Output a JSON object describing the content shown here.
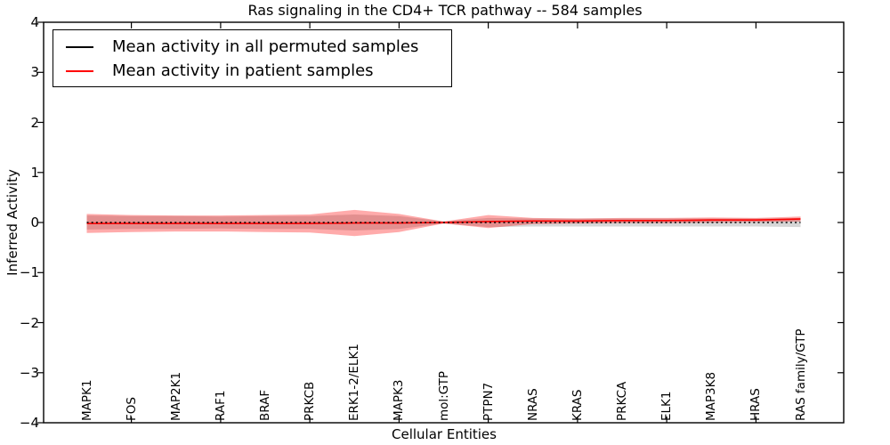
{
  "title": "Ras signaling in the CD4+ TCR pathway -- 584 samples",
  "chart_data": {
    "type": "line",
    "title": "Ras signaling in the CD4+ TCR pathway -- 584 samples",
    "xlabel": "Cellular Entities",
    "ylabel": "Inferred Activity",
    "ylim": [
      -4,
      4
    ],
    "yticks": [
      -4,
      -3,
      -2,
      -1,
      0,
      1,
      2,
      3,
      4
    ],
    "grid": false,
    "legend_position": "upper left",
    "categories": [
      "MAPK1",
      "FOS",
      "MAP2K1",
      "RAF1",
      "BRAF",
      "PRKCB",
      "ERK1-2/ELK1",
      "MAPK3",
      "mol:GTP",
      "PTPN7",
      "NRAS",
      "KRAS",
      "PRKCA",
      "ELK1",
      "MAP3K8",
      "HRAS",
      "RAS family/GTP"
    ],
    "series": [
      {
        "name": "Mean activity in all permuted samples",
        "color": "#000000",
        "line_style": "dashed",
        "band_color": "rgba(0,0,0,0.16)",
        "mean": [
          0,
          0,
          0,
          0,
          0,
          0,
          0,
          0,
          0,
          0,
          0,
          0,
          0,
          0,
          0,
          0,
          0
        ],
        "std": [
          0.14,
          0.13,
          0.13,
          0.12,
          0.13,
          0.13,
          0.16,
          0.13,
          0.02,
          0.09,
          0.08,
          0.08,
          0.08,
          0.08,
          0.08,
          0.08,
          0.09
        ]
      },
      {
        "name": "Mean activity in patient samples",
        "color": "#ff0000",
        "line_style": "solid",
        "band_color": "rgba(255,0,0,0.33)",
        "mean": [
          -0.02,
          -0.02,
          -0.02,
          -0.02,
          -0.02,
          -0.02,
          -0.01,
          -0.01,
          0.0,
          0.02,
          0.03,
          0.03,
          0.04,
          0.04,
          0.05,
          0.05,
          0.07
        ],
        "std": [
          0.19,
          0.17,
          0.16,
          0.16,
          0.17,
          0.18,
          0.26,
          0.18,
          0.02,
          0.13,
          0.06,
          0.05,
          0.05,
          0.05,
          0.05,
          0.04,
          0.05
        ]
      }
    ]
  }
}
